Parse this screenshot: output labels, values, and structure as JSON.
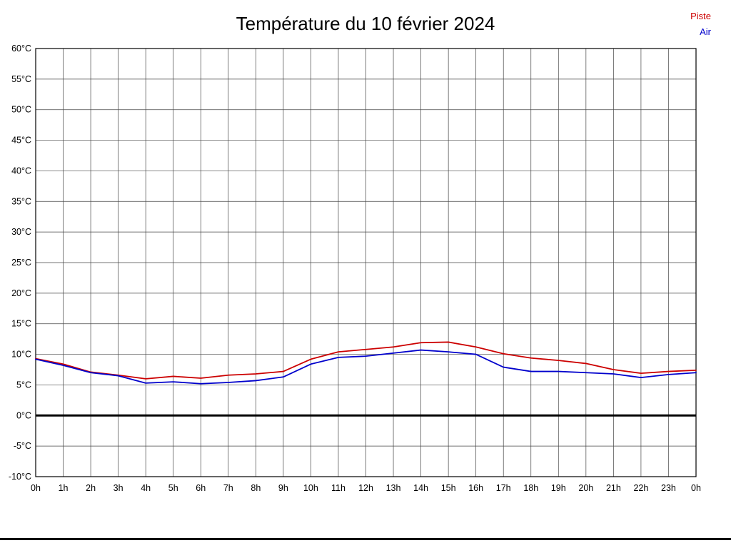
{
  "chart_data": {
    "type": "line",
    "title": "Température du 10 février 2024",
    "xlabel": "",
    "ylabel": "",
    "ylim": [
      -10,
      60
    ],
    "y_tick_step": 5,
    "y_tick_labels": [
      "-10°C",
      "-5°C",
      "0°C",
      "5°C",
      "10°C",
      "15°C",
      "20°C",
      "25°C",
      "30°C",
      "35°C",
      "40°C",
      "45°C",
      "50°C",
      "55°C",
      "60°C"
    ],
    "x_tick_labels": [
      "0h",
      "1h",
      "2h",
      "3h",
      "4h",
      "5h",
      "6h",
      "7h",
      "8h",
      "9h",
      "10h",
      "11h",
      "12h",
      "13h",
      "14h",
      "15h",
      "16h",
      "17h",
      "18h",
      "19h",
      "20h",
      "21h",
      "22h",
      "23h",
      "0h"
    ],
    "x_hours": [
      0,
      1,
      2,
      3,
      4,
      5,
      6,
      7,
      8,
      9,
      10,
      11,
      12,
      13,
      14,
      15,
      16,
      17,
      18,
      19,
      20,
      21,
      22,
      23,
      24
    ],
    "grid": true,
    "legend_position": "top-right",
    "zero_line": {
      "value": 0,
      "color": "#000000",
      "width": 3
    },
    "series_labels": {
      "piste": "Piste",
      "air": "Air"
    },
    "series": [
      {
        "name": "Piste",
        "color": "#cc0000",
        "values": [
          9.3,
          8.4,
          7.1,
          6.6,
          6.0,
          6.4,
          6.1,
          6.6,
          6.8,
          7.2,
          9.2,
          10.4,
          10.8,
          11.2,
          11.9,
          12.0,
          11.2,
          10.1,
          9.4,
          9.0,
          8.5,
          7.5,
          6.9,
          7.2,
          7.4
        ]
      },
      {
        "name": "Air",
        "color": "#0000cc",
        "values": [
          9.2,
          8.2,
          7.0,
          6.5,
          5.3,
          5.5,
          5.2,
          5.4,
          5.7,
          6.3,
          8.4,
          9.5,
          9.7,
          10.2,
          10.7,
          10.4,
          10.0,
          7.9,
          7.2,
          7.2,
          7.0,
          6.8,
          6.2,
          6.7,
          7.0
        ]
      }
    ],
    "colors": {
      "grid": "#444444",
      "axis_border": "#000000",
      "tick_text": "#000000"
    }
  }
}
